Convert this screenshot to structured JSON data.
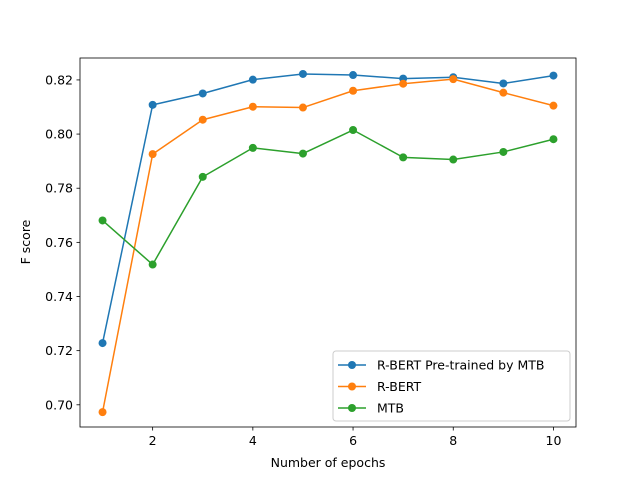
{
  "chart_data": {
    "type": "line",
    "title": "",
    "xlabel": "Number of epochs",
    "ylabel": "F score",
    "x": [
      1,
      2,
      3,
      4,
      5,
      6,
      7,
      8,
      9,
      10
    ],
    "xlim": [
      0.55,
      10.45
    ],
    "ylim": [
      0.6918,
      0.8281
    ],
    "xticks": [
      2,
      4,
      6,
      8,
      10
    ],
    "xtick_labels": [
      "2",
      "4",
      "6",
      "8",
      "10"
    ],
    "yticks": [
      0.7,
      0.72,
      0.74,
      0.76,
      0.78,
      0.8,
      0.82
    ],
    "ytick_labels": [
      "0.70",
      "0.72",
      "0.74",
      "0.76",
      "0.78",
      "0.80",
      "0.82"
    ],
    "grid": false,
    "legend_position": "lower-right",
    "series": [
      {
        "name": "R-BERT Pre-trained by MTB",
        "color": "#1f77b4",
        "marker": "circle",
        "values": [
          0.7228,
          0.8108,
          0.815,
          0.8201,
          0.8222,
          0.8218,
          0.8205,
          0.821,
          0.8187,
          0.8216
        ]
      },
      {
        "name": "R-BERT",
        "color": "#ff7f0e",
        "marker": "circle",
        "values": [
          0.6973,
          0.7926,
          0.8053,
          0.8101,
          0.8098,
          0.816,
          0.8186,
          0.8203,
          0.8153,
          0.8105
        ]
      },
      {
        "name": "MTB",
        "color": "#2ca02c",
        "marker": "circle",
        "values": [
          0.7681,
          0.7518,
          0.7842,
          0.7949,
          0.7928,
          0.8015,
          0.7914,
          0.7906,
          0.7934,
          0.7981
        ]
      }
    ]
  }
}
